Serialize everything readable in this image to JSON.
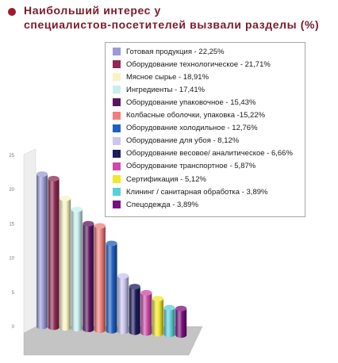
{
  "title": "Наибольший интерес у\nспециалистов-посетителей вызвали разделы (%)",
  "chart_data": {
    "type": "bar",
    "title": "Наибольший интерес у специалистов-посетителей вызвали разделы (%)",
    "xlabel": "",
    "ylabel": "",
    "ylim": [
      0,
      25
    ],
    "yticks": [
      "0",
      "5",
      "10",
      "15",
      "20",
      "25"
    ],
    "grid": false,
    "legend_position": "top-right",
    "categories": [
      "Готовая продукция - 22,25%",
      "Оборудование технологическое - 21,71%",
      "Мясное сырье - 18,91%",
      "Ингредиенты - 17,41%",
      "Оборудование упаковочное - 15,43%",
      "Колбасные оболочки, упаковка -15,22%",
      "Оборудование холодильное - 12,76%",
      "Оборудование для убоя - 8,12%",
      "Оборудование весовое/ аналитическое - 6,66%",
      "Оборудование транспортное - 5,87%",
      "Сертификация - 5,12%",
      "Клининг / санитарная обработка - 3,89%",
      "Спецодежда - 3,89%"
    ],
    "values": [
      22.25,
      21.71,
      18.91,
      17.41,
      15.43,
      15.22,
      12.76,
      8.12,
      6.66,
      5.87,
      5.12,
      3.89,
      3.89
    ],
    "colors": [
      "#9a9ad6",
      "#8e2a52",
      "#f8f3c3",
      "#c8eef0",
      "#5a1660",
      "#f07e7a",
      "#1e5fc0",
      "#c9c6ef",
      "#1c1c5e",
      "#cc4aa8",
      "#f0e82a",
      "#5ad0da",
      "#7a1080"
    ]
  }
}
